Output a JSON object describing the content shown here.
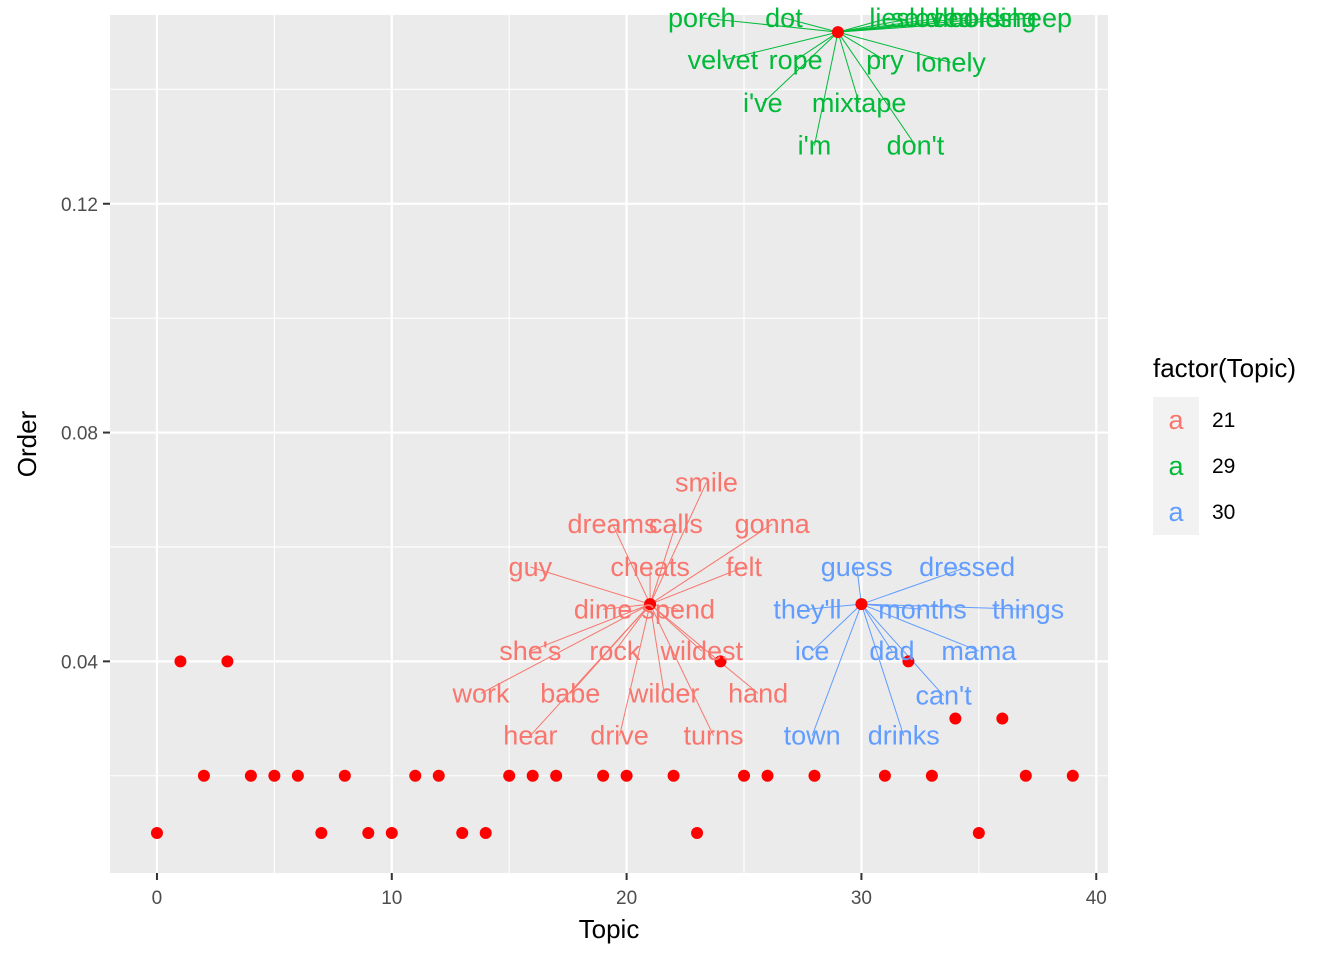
{
  "chart_data": {
    "type": "scatter",
    "xlabel": "Topic",
    "ylabel": "Order",
    "xlim": [
      -2,
      40.5
    ],
    "ylim": [
      0.003,
      0.153
    ],
    "x_ticks": [
      0,
      10,
      20,
      30,
      40
    ],
    "x_tick_labels": [
      "0",
      "10",
      "20",
      "30",
      "40"
    ],
    "y_ticks": [
      0.04,
      0.08,
      0.12
    ],
    "y_tick_labels": [
      "0.04",
      "0.08",
      "0.12"
    ],
    "grid": true,
    "point_color": "#ff0000",
    "points": [
      {
        "x": 0,
        "y": 0.01
      },
      {
        "x": 1,
        "y": 0.04
      },
      {
        "x": 2,
        "y": 0.02
      },
      {
        "x": 3,
        "y": 0.04
      },
      {
        "x": 4,
        "y": 0.02
      },
      {
        "x": 5,
        "y": 0.02
      },
      {
        "x": 6,
        "y": 0.02
      },
      {
        "x": 7,
        "y": 0.01
      },
      {
        "x": 8,
        "y": 0.02
      },
      {
        "x": 9,
        "y": 0.01
      },
      {
        "x": 10,
        "y": 0.01
      },
      {
        "x": 11,
        "y": 0.02
      },
      {
        "x": 12,
        "y": 0.02
      },
      {
        "x": 13,
        "y": 0.01
      },
      {
        "x": 14,
        "y": 0.01
      },
      {
        "x": 15,
        "y": 0.02
      },
      {
        "x": 16,
        "y": 0.02
      },
      {
        "x": 17,
        "y": 0.02
      },
      {
        "x": 19,
        "y": 0.02
      },
      {
        "x": 20,
        "y": 0.02
      },
      {
        "x": 21,
        "y": 0.05
      },
      {
        "x": 22,
        "y": 0.02
      },
      {
        "x": 23,
        "y": 0.01
      },
      {
        "x": 24,
        "y": 0.04
      },
      {
        "x": 25,
        "y": 0.02
      },
      {
        "x": 26,
        "y": 0.02
      },
      {
        "x": 28,
        "y": 0.02
      },
      {
        "x": 29,
        "y": 0.15
      },
      {
        "x": 30,
        "y": 0.05
      },
      {
        "x": 31,
        "y": 0.02
      },
      {
        "x": 32,
        "y": 0.04
      },
      {
        "x": 33,
        "y": 0.02
      },
      {
        "x": 34,
        "y": 0.03
      },
      {
        "x": 35,
        "y": 0.01
      },
      {
        "x": 36,
        "y": 0.03
      },
      {
        "x": 37,
        "y": 0.02
      },
      {
        "x": 39,
        "y": 0.02
      }
    ],
    "legend": {
      "title": "factor(Topic)",
      "placement": "right",
      "key_glyph": "a",
      "entries": [
        {
          "label": "21",
          "color": "#f8766d"
        },
        {
          "label": "29",
          "color": "#00ba38"
        },
        {
          "label": "30",
          "color": "#619cff"
        }
      ]
    },
    "word_groups": [
      {
        "topic": "21",
        "color": "#f8766d",
        "anchor": {
          "x": 21,
          "y": 0.05
        },
        "words": [
          {
            "text": "smile",
            "x": 23.4,
            "y": 0.0713
          },
          {
            "text": "dreams",
            "x": 19.4,
            "y": 0.064
          },
          {
            "text": "calls",
            "x": 22.1,
            "y": 0.064
          },
          {
            "text": "gonna",
            "x": 26.2,
            "y": 0.064
          },
          {
            "text": "guy",
            "x": 15.9,
            "y": 0.0565
          },
          {
            "text": "cheats",
            "x": 21.0,
            "y": 0.0565
          },
          {
            "text": "felt",
            "x": 25.0,
            "y": 0.0565
          },
          {
            "text": "dime",
            "x": 19.0,
            "y": 0.0491
          },
          {
            "text": "spend",
            "x": 22.2,
            "y": 0.0491
          },
          {
            "text": "she's",
            "x": 15.9,
            "y": 0.0418
          },
          {
            "text": "rock",
            "x": 19.5,
            "y": 0.0418
          },
          {
            "text": "wildest",
            "x": 23.2,
            "y": 0.0418
          },
          {
            "text": "work",
            "x": 13.8,
            "y": 0.0344
          },
          {
            "text": "babe",
            "x": 17.6,
            "y": 0.0344
          },
          {
            "text": "wilder",
            "x": 21.6,
            "y": 0.0344
          },
          {
            "text": "hand",
            "x": 25.6,
            "y": 0.0344
          },
          {
            "text": "hear",
            "x": 15.9,
            "y": 0.027
          },
          {
            "text": "drive",
            "x": 19.7,
            "y": 0.027
          },
          {
            "text": "turns",
            "x": 23.7,
            "y": 0.027
          }
        ]
      },
      {
        "topic": "29",
        "color": "#00ba38",
        "anchor": {
          "x": 29,
          "y": 0.15
        },
        "words": [
          {
            "text": "porch",
            "x": 23.2,
            "y": 0.1525
          },
          {
            "text": "dot",
            "x": 26.7,
            "y": 0.1525
          },
          {
            "text": "lies",
            "x": 31.2,
            "y": 0.1525
          },
          {
            "text": "sold",
            "x": 32.3,
            "y": 0.1525
          },
          {
            "text": "loved",
            "x": 33.4,
            "y": 0.1525
          },
          {
            "text": "doors",
            "x": 34.5,
            "y": 0.1525
          },
          {
            "text": "holding",
            "x": 35.6,
            "y": 0.1525
          },
          {
            "text": "sheep",
            "x": 37.4,
            "y": 0.1525
          },
          {
            "text": "velvet",
            "x": 24.1,
            "y": 0.1451
          },
          {
            "text": "rope",
            "x": 27.2,
            "y": 0.1451
          },
          {
            "text": "pry",
            "x": 31.0,
            "y": 0.1451
          },
          {
            "text": "lonely",
            "x": 33.8,
            "y": 0.1447
          },
          {
            "text": "i've",
            "x": 25.8,
            "y": 0.1376
          },
          {
            "text": "mixtape",
            "x": 29.9,
            "y": 0.1376
          },
          {
            "text": "i'm",
            "x": 28.0,
            "y": 0.1302
          },
          {
            "text": "don't",
            "x": 32.3,
            "y": 0.1302
          }
        ]
      },
      {
        "topic": "30",
        "color": "#619cff",
        "anchor": {
          "x": 30,
          "y": 0.05
        },
        "words": [
          {
            "text": "guess",
            "x": 29.8,
            "y": 0.0565
          },
          {
            "text": "dressed",
            "x": 34.5,
            "y": 0.0565
          },
          {
            "text": "they'll",
            "x": 27.7,
            "y": 0.0491
          },
          {
            "text": "months",
            "x": 32.6,
            "y": 0.0491
          },
          {
            "text": "things",
            "x": 37.1,
            "y": 0.0491
          },
          {
            "text": "ice",
            "x": 27.9,
            "y": 0.0418
          },
          {
            "text": "dad",
            "x": 31.3,
            "y": 0.0418
          },
          {
            "text": "mama",
            "x": 35.0,
            "y": 0.0418
          },
          {
            "text": "can't",
            "x": 33.5,
            "y": 0.034
          },
          {
            "text": "town",
            "x": 27.9,
            "y": 0.027
          },
          {
            "text": "drinks",
            "x": 31.8,
            "y": 0.027
          }
        ]
      }
    ]
  }
}
